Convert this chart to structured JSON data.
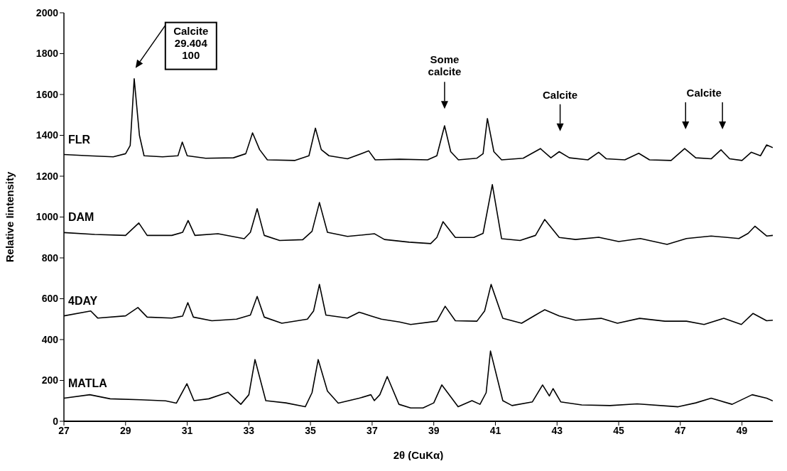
{
  "chart_data": {
    "type": "line",
    "xlabel": "2θ (CuKα)",
    "ylabel": "Relative Iintensity",
    "xlim": [
      27,
      50
    ],
    "xticks": [
      27,
      29,
      31,
      33,
      35,
      37,
      39,
      41,
      43,
      45,
      47,
      49
    ],
    "ylim": [
      0,
      2000
    ],
    "yticks": [
      0,
      200,
      400,
      600,
      800,
      1000,
      1200,
      1400,
      1600,
      1800,
      2000
    ],
    "grid": false,
    "legend": false,
    "marker": "none",
    "line_style": "solid",
    "series": [
      {
        "name": "FLR",
        "color": "#000000",
        "x": [
          27,
          27.8,
          28.6,
          29.0,
          29.15,
          29.28,
          29.45,
          29.6,
          30.2,
          30.7,
          30.84,
          31.0,
          31.6,
          32.5,
          32.9,
          33.12,
          33.35,
          33.6,
          34.5,
          34.95,
          35.16,
          35.35,
          35.6,
          36.2,
          36.89,
          37.1,
          37.89,
          38.8,
          39.1,
          39.35,
          39.55,
          39.8,
          40.4,
          40.6,
          40.74,
          40.95,
          41.2,
          41.9,
          42.46,
          42.8,
          43.07,
          43.4,
          44.0,
          44.35,
          44.6,
          45.2,
          45.65,
          46.0,
          46.7,
          47.14,
          47.5,
          48.0,
          48.32,
          48.6,
          49.0,
          49.3,
          49.6,
          49.8,
          50
        ],
        "values": [
          1306,
          1300,
          1295,
          1310,
          1350,
          1677,
          1400,
          1300,
          1295,
          1300,
          1367,
          1300,
          1288,
          1290,
          1310,
          1412,
          1330,
          1280,
          1277,
          1300,
          1435,
          1330,
          1300,
          1285,
          1324,
          1280,
          1283,
          1280,
          1300,
          1447,
          1320,
          1280,
          1288,
          1310,
          1482,
          1320,
          1280,
          1288,
          1335,
          1290,
          1320,
          1290,
          1280,
          1317,
          1285,
          1280,
          1312,
          1280,
          1277,
          1335,
          1290,
          1285,
          1329,
          1285,
          1277,
          1317,
          1300,
          1353,
          1340
        ]
      },
      {
        "name": "DAM",
        "color": "#000000",
        "x": [
          27,
          28,
          29,
          29.43,
          29.7,
          30.5,
          30.85,
          31.03,
          31.25,
          32.0,
          32.85,
          33.05,
          33.27,
          33.5,
          34.0,
          34.75,
          35.05,
          35.29,
          35.55,
          36.2,
          37.08,
          37.4,
          38.2,
          38.9,
          39.1,
          39.3,
          39.7,
          40.3,
          40.6,
          40.9,
          41.2,
          41.8,
          42.3,
          42.6,
          43.07,
          43.6,
          44.35,
          45.0,
          45.7,
          46.57,
          47.2,
          48.0,
          48.9,
          49.2,
          49.42,
          49.8,
          50
        ],
        "values": [
          924,
          915,
          910,
          971,
          910,
          910,
          925,
          983,
          910,
          918,
          894,
          925,
          1041,
          910,
          885,
          889,
          930,
          1071,
          925,
          905,
          918,
          890,
          877,
          870,
          900,
          977,
          900,
          900,
          920,
          1159,
          894,
          885,
          910,
          988,
          900,
          890,
          901,
          880,
          895,
          866,
          895,
          907,
          895,
          920,
          955,
          907,
          910
        ]
      },
      {
        "name": "4DAY",
        "color": "#000000",
        "x": [
          27,
          27.87,
          28.1,
          29.0,
          29.4,
          29.7,
          30.5,
          30.85,
          31.02,
          31.2,
          31.8,
          32.6,
          33.05,
          33.27,
          33.5,
          34.07,
          34.9,
          35.1,
          35.29,
          35.5,
          36.2,
          36.58,
          36.96,
          37.3,
          37.89,
          38.25,
          39.1,
          39.37,
          39.7,
          40.4,
          40.65,
          40.86,
          41.24,
          41.85,
          42.3,
          42.6,
          43.07,
          43.6,
          44.43,
          44.96,
          45.68,
          46.5,
          47.2,
          47.77,
          48.41,
          48.98,
          49.36,
          49.8,
          50
        ],
        "values": [
          516,
          540,
          505,
          516,
          557,
          510,
          505,
          515,
          581,
          510,
          492,
          500,
          520,
          611,
          510,
          480,
          500,
          540,
          670,
          520,
          505,
          534,
          516,
          500,
          486,
          474,
          490,
          563,
          492,
          490,
          540,
          670,
          504,
          480,
          520,
          546,
          516,
          495,
          504,
          480,
          504,
          490,
          490,
          474,
          504,
          474,
          528,
          492,
          495
        ]
      },
      {
        "name": "MATLA",
        "color": "#000000",
        "x": [
          27,
          27.84,
          28.5,
          29.5,
          30.3,
          30.65,
          30.99,
          31.22,
          31.7,
          32.32,
          32.74,
          33.0,
          33.2,
          33.55,
          34.2,
          34.83,
          35.05,
          35.25,
          35.55,
          35.9,
          36.58,
          36.96,
          37.07,
          37.25,
          37.49,
          37.87,
          38.25,
          38.65,
          39.0,
          39.26,
          39.79,
          40.24,
          40.5,
          40.7,
          40.84,
          41.24,
          41.54,
          42.2,
          42.53,
          42.75,
          42.87,
          43.12,
          43.8,
          44.72,
          45.6,
          46.93,
          47.5,
          48.0,
          48.68,
          49.33,
          49.8,
          50
        ],
        "values": [
          113,
          130,
          110,
          105,
          100,
          89,
          184,
          101,
          110,
          142,
          83,
          130,
          302,
          101,
          90,
          71,
          140,
          302,
          148,
          89,
          113,
          130,
          101,
          130,
          219,
          83,
          65,
          65,
          90,
          178,
          71,
          101,
          83,
          140,
          344,
          101,
          77,
          95,
          178,
          124,
          160,
          95,
          80,
          77,
          85,
          71,
          90,
          113,
          83,
          130,
          113,
          100
        ]
      }
    ],
    "annotations": [
      "Calcite\n29.404\n100",
      "Some\ncalcite",
      "Calcite",
      "Calcite"
    ]
  }
}
